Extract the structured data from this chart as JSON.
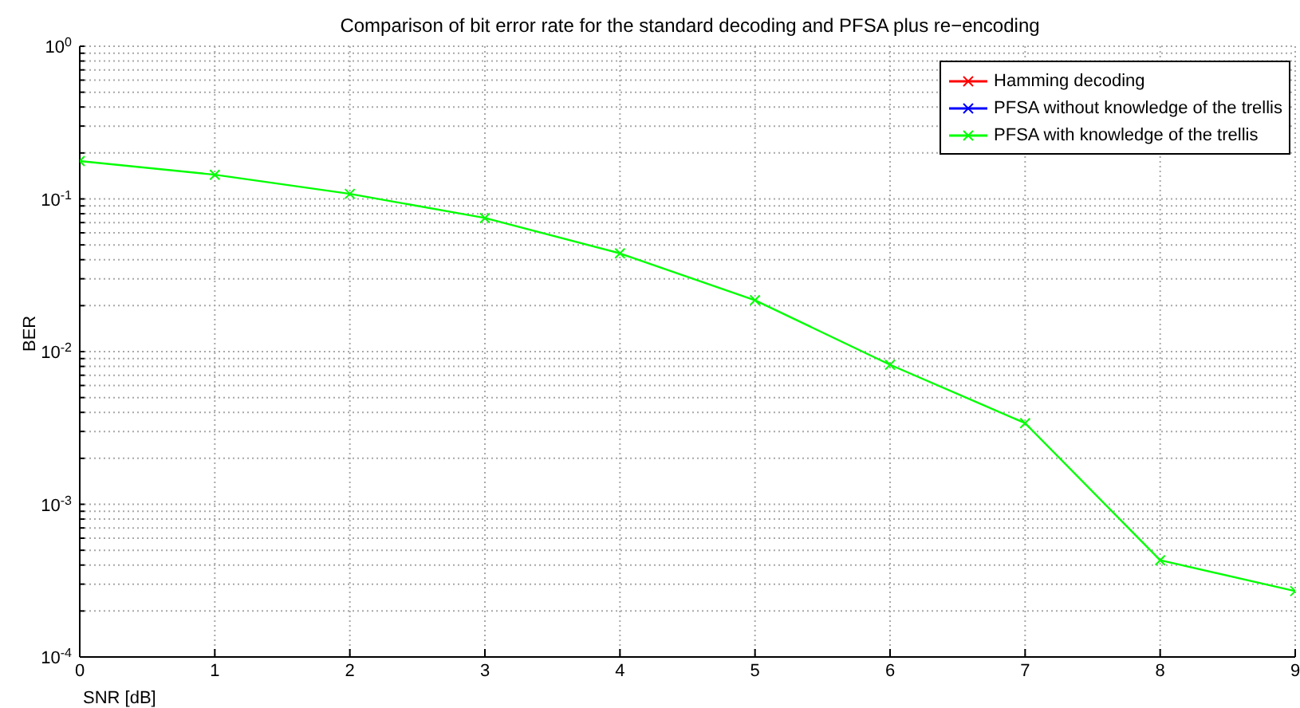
{
  "chart_data": {
    "type": "line",
    "title": "Comparison of bit error rate for the standard decoding and PFSA plus re−encoding",
    "xlabel": "SNR [dB]",
    "ylabel": "BER",
    "x": [
      0,
      1,
      2,
      3,
      4,
      5,
      6,
      7,
      8,
      9
    ],
    "series": [
      {
        "name": "Hamming decoding",
        "color": "#ff0000",
        "values": [
          null,
          null,
          null,
          null,
          null,
          null,
          null,
          null,
          null,
          null
        ]
      },
      {
        "name": "PFSA without knowledge of the trellis",
        "color": "#0000ff",
        "values": [
          null,
          null,
          null,
          null,
          null,
          null,
          null,
          null,
          null,
          null
        ]
      },
      {
        "name": "PFSA with knowledge of the trellis",
        "color": "#00ff00",
        "values": [
          0.177,
          0.144,
          0.108,
          0.075,
          0.044,
          0.0217,
          0.0082,
          0.0034,
          0.00043,
          0.00027
        ]
      }
    ],
    "log": "y",
    "xlim": [
      0,
      9
    ],
    "ylim": [
      0.0001,
      1
    ],
    "xticks": [
      0,
      1,
      2,
      3,
      4,
      5,
      6,
      7,
      8,
      9
    ],
    "yticks": [
      {
        "value": 0.0001,
        "label": "10$^{-4}$"
      },
      {
        "value": 0.0002,
        "label": null
      },
      {
        "value": 0.0003,
        "label": null
      },
      {
        "value": 0.0004,
        "label": null
      },
      {
        "value": 0.0005,
        "label": null
      },
      {
        "value": 0.0006,
        "label": null
      },
      {
        "value": 0.0007,
        "label": null
      },
      {
        "value": 0.0008,
        "label": null
      },
      {
        "value": 0.0009,
        "label": null
      },
      {
        "value": 0.001,
        "label": "10$^{-3}$"
      },
      {
        "value": 0.002,
        "label": null
      },
      {
        "value": 0.003,
        "label": null
      },
      {
        "value": 0.004,
        "label": null
      },
      {
        "value": 0.005,
        "label": null
      },
      {
        "value": 0.006,
        "label": null
      },
      {
        "value": 0.007,
        "label": null
      },
      {
        "value": 0.008,
        "label": null
      },
      {
        "value": 0.009,
        "label": null
      },
      {
        "value": 0.01,
        "label": "10$^{-2}$"
      },
      {
        "value": 0.02,
        "label": null
      },
      {
        "value": 0.03,
        "label": null
      },
      {
        "value": 0.04,
        "label": null
      },
      {
        "value": 0.05,
        "label": null
      },
      {
        "value": 0.06,
        "label": null
      },
      {
        "value": 0.07,
        "label": null
      },
      {
        "value": 0.08,
        "label": null
      },
      {
        "value": 0.09,
        "label": null
      },
      {
        "value": 0.1,
        "label": "10$^{-1}$"
      },
      {
        "value": 0.2,
        "label": null
      },
      {
        "value": 0.3,
        "label": null
      },
      {
        "value": 0.4,
        "label": null
      },
      {
        "value": 0.5,
        "label": null
      },
      {
        "value": 0.6,
        "label": null
      },
      {
        "value": 0.7,
        "label": null
      },
      {
        "value": 0.8,
        "label": null
      },
      {
        "value": 0.9,
        "label": null
      },
      {
        "value": 1,
        "label": "10$^{0}$"
      }
    ],
    "grid": true,
    "legend": "top right",
    "marker": "cross",
    "line_style": "solid"
  }
}
